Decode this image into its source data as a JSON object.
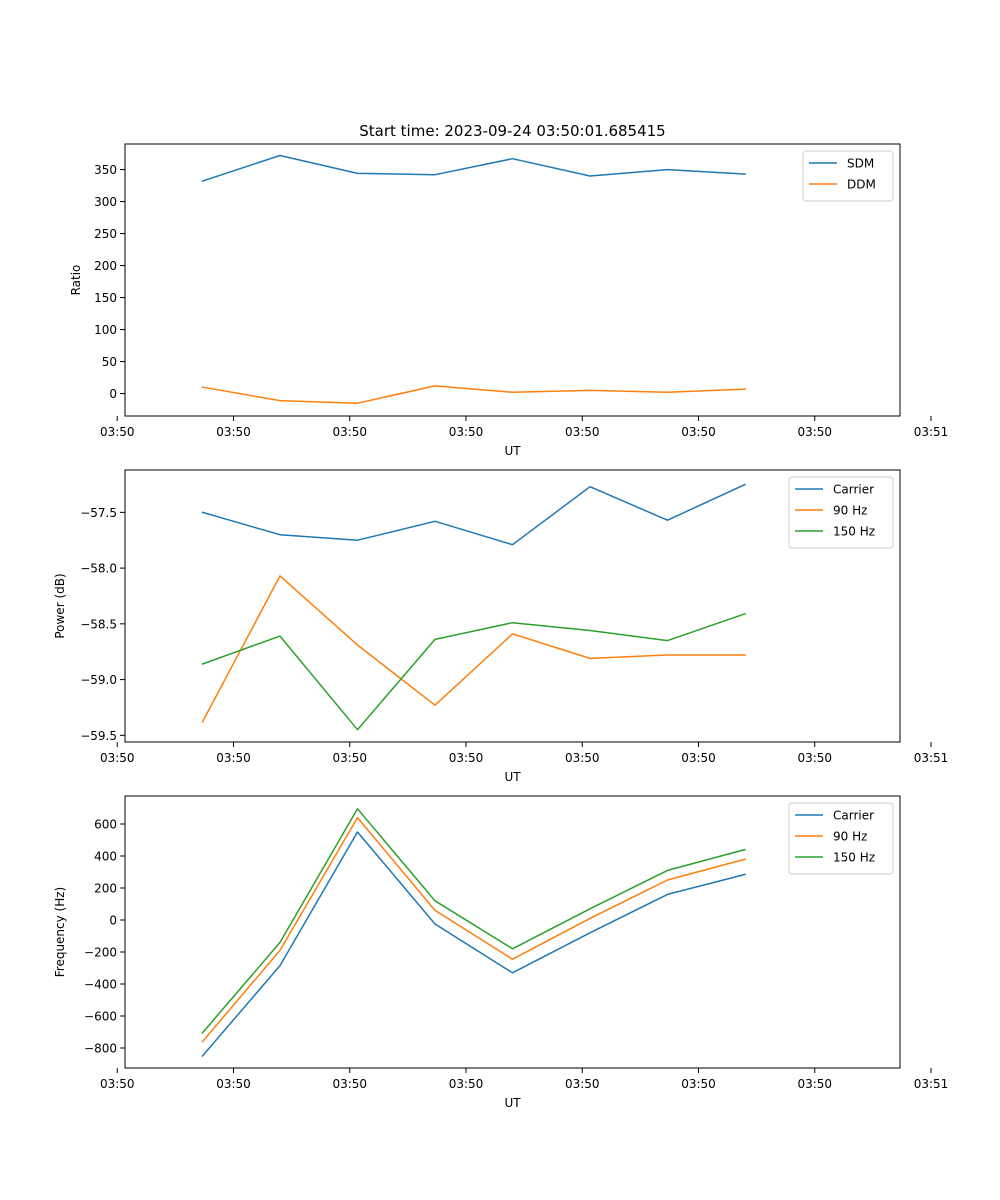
{
  "figure": {
    "title": "Start time: 2023-09-24 03:50:01.685415"
  },
  "chart_data": [
    {
      "type": "line",
      "title": "Start time: 2023-09-24 03:50:01.685415",
      "xlabel": "UT",
      "ylabel": "Ratio",
      "x_tick_labels": [
        "03:50",
        "03:50",
        "03:50",
        "03:50",
        "03:50",
        "03:50",
        "03:50",
        "03:51"
      ],
      "y_ticks": [
        0,
        50,
        100,
        150,
        200,
        250,
        300,
        350
      ],
      "ylim": [
        -35,
        390
      ],
      "x": [
        1,
        2,
        3,
        4,
        5,
        6,
        7,
        8
      ],
      "xlim": [
        0,
        10
      ],
      "legend": "top-right",
      "series": [
        {
          "name": "SDM",
          "color": "#1f77b4",
          "values": [
            332,
            372,
            344,
            342,
            367,
            340,
            350,
            343
          ]
        },
        {
          "name": "DDM",
          "color": "#ff7f0e",
          "values": [
            10,
            -11,
            -15,
            12,
            2,
            5,
            2,
            7
          ]
        }
      ]
    },
    {
      "type": "line",
      "title": "",
      "xlabel": "UT",
      "ylabel": "Power (dB)",
      "x_tick_labels": [
        "03:50",
        "03:50",
        "03:50",
        "03:50",
        "03:50",
        "03:50",
        "03:50",
        "03:51"
      ],
      "y_ticks": [
        -57.5,
        -58.0,
        -58.5,
        -59.0,
        -59.5
      ],
      "y_tick_labels": [
        "−57.5",
        "−58.0",
        "−58.5",
        "−59.0",
        "−59.5"
      ],
      "ylim": [
        -59.56,
        -57.12
      ],
      "x": [
        1,
        2,
        3,
        4,
        5,
        6,
        7,
        8
      ],
      "xlim": [
        0,
        10
      ],
      "legend": "top-right",
      "series": [
        {
          "name": "Carrier",
          "color": "#1f77b4",
          "values": [
            -57.5,
            -57.7,
            -57.75,
            -57.58,
            -57.79,
            -57.27,
            -57.57,
            -57.25
          ]
        },
        {
          "name": "90 Hz",
          "color": "#ff7f0e",
          "values": [
            -59.38,
            -58.07,
            -58.69,
            -59.23,
            -58.59,
            -58.81,
            -58.78,
            -58.78
          ]
        },
        {
          "name": "150 Hz",
          "color": "#2ca02c",
          "values": [
            -58.86,
            -58.61,
            -59.45,
            -58.64,
            -58.49,
            -58.56,
            -58.65,
            -58.41
          ]
        }
      ]
    },
    {
      "type": "line",
      "title": "",
      "xlabel": "UT",
      "ylabel": "Frequency (Hz)",
      "x_tick_labels": [
        "03:50",
        "03:50",
        "03:50",
        "03:50",
        "03:50",
        "03:50",
        "03:50",
        "03:51"
      ],
      "y_ticks": [
        600,
        400,
        200,
        0,
        -200,
        -400,
        -600,
        -800
      ],
      "y_tick_labels": [
        "600",
        "400",
        "200",
        "0",
        "−200",
        "−400",
        "−600",
        "−800"
      ],
      "ylim": [
        -925,
        775
      ],
      "x": [
        1,
        2,
        3,
        4,
        5,
        6,
        7,
        8
      ],
      "xlim": [
        0,
        10
      ],
      "legend": "top-right",
      "series": [
        {
          "name": "Carrier",
          "color": "#1f77b4",
          "values": [
            -850,
            -285,
            550,
            -25,
            -330,
            -80,
            160,
            285
          ]
        },
        {
          "name": "90 Hz",
          "color": "#ff7f0e",
          "values": [
            -760,
            -190,
            640,
            60,
            -245,
            10,
            250,
            380
          ]
        },
        {
          "name": "150 Hz",
          "color": "#2ca02c",
          "values": [
            -705,
            -140,
            695,
            120,
            -180,
            70,
            310,
            440
          ]
        }
      ]
    }
  ]
}
